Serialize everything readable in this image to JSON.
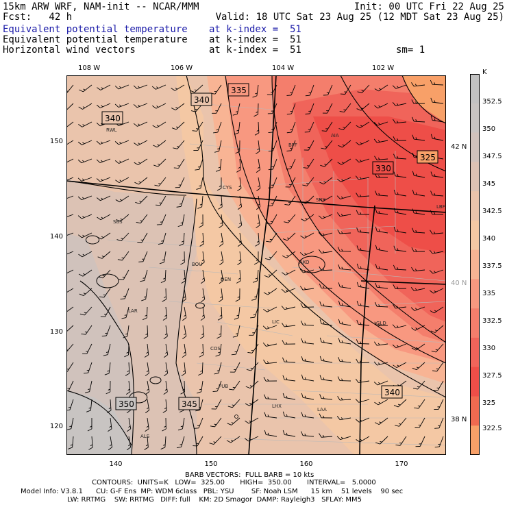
{
  "header": {
    "model": "15km ARW WRF, NAM-init -- NCAR/MMM",
    "init": "Init: 00 UTC Fri 22 Aug 25",
    "fcst": "Fcst:   42 h",
    "valid": "Valid: 18 UTC Sat 23 Aug 25 (12 MDT Sat 23 Aug 25)",
    "fields": [
      {
        "name": "Equivalent potential temperature",
        "level": "at k-index =  51",
        "color": "#1a1aa8"
      },
      {
        "name": "Equivalent potential temperature",
        "level": "at k-index =  51",
        "color": "#000000"
      },
      {
        "name": "Horizontal wind vectors",
        "level": "at k-index =  51",
        "color": "#000000"
      }
    ],
    "smoothing": "sm= 1"
  },
  "axes": {
    "lon_labels": [
      "108 W",
      "106 W",
      "104 W",
      "102 W"
    ],
    "lat_labels": [
      "42 N",
      "40 N",
      "38 N"
    ],
    "grid_y": [
      "150",
      "140",
      "130",
      "120"
    ],
    "grid_x": [
      "140",
      "150",
      "160",
      "170"
    ]
  },
  "colorbar": {
    "unit": "K",
    "ticks": [
      "352.5",
      "350",
      "347.5",
      "345",
      "342.5",
      "340",
      "337.5",
      "335",
      "332.5",
      "330",
      "327.5",
      "325",
      "322.5"
    ],
    "colors": [
      "#c2c2c2",
      "#c8c4c2",
      "#d0c2bc",
      "#dcc2b4",
      "#eac4ac",
      "#f4c8a4",
      "#f8b494",
      "#f89880",
      "#f47e6c",
      "#f0645a",
      "#ee4e48",
      "#f06a50",
      "#f8a068"
    ],
    "colors_meaning": "bands from 352.5+ (top) down to below 322.5 (bottom)"
  },
  "map": {
    "contour_labels": [
      "340",
      "340",
      "335",
      "330",
      "325",
      "350",
      "345",
      "340"
    ],
    "cities": [
      "RWL",
      "BFF",
      "AIA",
      "CYS",
      "SNY",
      "SBS",
      "BOU",
      "DEN",
      "AKO",
      "LAR",
      "LIC",
      "GLD",
      "COS",
      "PUB",
      "LHX",
      "LAA",
      "ALS",
      "LBF"
    ]
  },
  "footer": {
    "barbs": "BARB VECTORS:  FULL BARB = 10 kts",
    "contours": "CONTOURS:  UNITS=K   LOW=  325.00       HIGH=  350.00       INTERVAL=   5.0000",
    "model_info": "Model Info: V3.8.1      CU: G-F Ens  MP: WDM 6class   PBL: YSU        SF: Noah LSM      15 km    51 levels    90 sec",
    "phys": "LW: RRTMG    SW: RRTMG   DIFF: full    KM: 2D Smagor  DAMP: Rayleigh3   SFLAY: MM5"
  }
}
